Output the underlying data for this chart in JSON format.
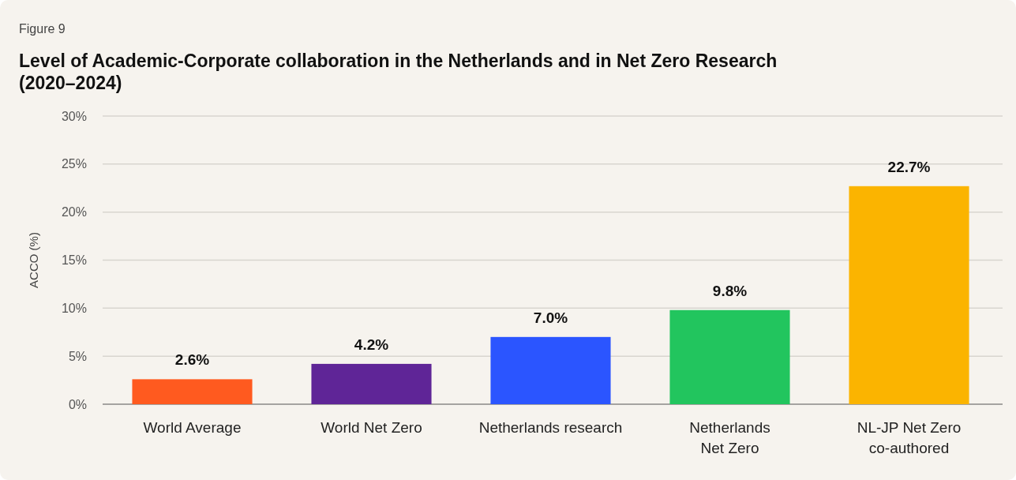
{
  "chart_data": {
    "type": "bar",
    "title": "Level of Academic-Corporate collaboration in the Netherlands and in Net Zero Research (2020–2024)",
    "annotations": [
      "Figure 9"
    ],
    "ylabel": "ACCO (%)",
    "categories": [
      "World Average",
      "World Net Zero",
      "Netherlands research",
      "Netherlands\nNet Zero",
      "NL-JP Net Zero\nco-authored"
    ],
    "values": [
      2.6,
      4.2,
      7.0,
      9.8,
      22.7
    ],
    "colors": [
      "#ff5a1f",
      "#5f2597",
      "#2b55ff",
      "#22c55e",
      "#fbb400"
    ],
    "value_labels": [
      "2.6%",
      "4.2%",
      "7.0%",
      "9.8%",
      "22.7%"
    ],
    "ylim": [
      0,
      30
    ],
    "yticks": [
      {
        "value": 0,
        "label": "0%"
      },
      {
        "value": 5,
        "label": "5%"
      },
      {
        "value": 10,
        "label": "10%"
      },
      {
        "value": 15,
        "label": "15%"
      },
      {
        "value": 20,
        "label": "20%"
      },
      {
        "value": 25,
        "label": "25%"
      },
      {
        "value": 30,
        "label": "30%"
      }
    ],
    "grid": "y"
  }
}
